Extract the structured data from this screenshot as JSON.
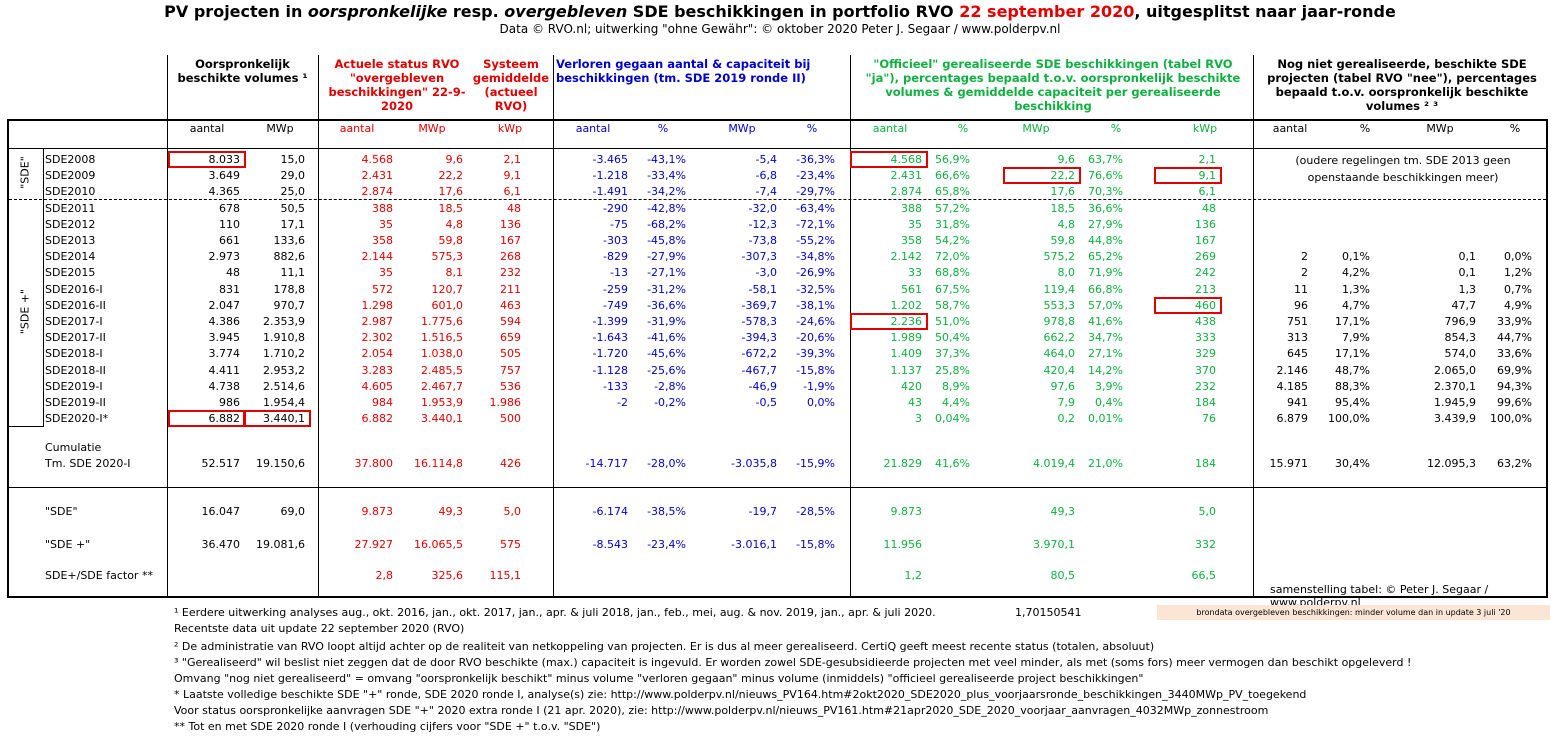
{
  "title": {
    "part1": "PV projecten in ",
    "part2": "oorspronkelijke",
    "part3": " resp. ",
    "part4": "overgebleven",
    "part5": " SDE beschikkingen in portfolio RVO ",
    "part6": "22 september 2020",
    "part7": ", uitgesplitst naar jaar-ronde"
  },
  "subtitle": "Data © RVO.nl; uitwerking \"ohne Gewähr\": © oktober 2020 Peter J. Segaar / www.polderpv.nl",
  "headers": {
    "orig": "Oorspronkelijk beschikte volumes ¹",
    "actueel": "Actuele status RVO \"overgebleven beschikkingen\" 22-9-2020",
    "systeem": "Systeem gemiddelde (actueel RVO)",
    "verloren": "Verloren gegaan aantal & capaciteit bij beschikkingen (tm. SDE 2019 ronde II)",
    "officieel": "\"Officieel\" gerealiseerde SDE beschikkingen (tabel RVO \"ja\"), percentages bepaald t.o.v. oorspronkelijk beschikte volumes & gemiddelde capaciteit per gerealiseerde beschikking",
    "nognietgereal": "Nog niet gerealiseerde, beschikte SDE projecten (tabel RVO \"nee\"), percentages bepaald t.o.v. oorspronkelijk beschikte volumes ² ³"
  },
  "subheaders": [
    "aantal",
    "MWp",
    "aantal",
    "MWp",
    "kWp",
    "aantal",
    "%",
    "MWp",
    "%",
    "aantal",
    "%",
    "MWp",
    "%",
    "kWp",
    "aantal",
    "%",
    "MWp",
    "%"
  ],
  "group_labels": {
    "sde": "\"SDE\"",
    "sdeplus": "\"SDE +\""
  },
  "rows": [
    {
      "label": "SDE2008",
      "v": [
        "8.033",
        "15,0",
        "4.568",
        "9,6",
        "2,1",
        "-3.465",
        "-43,1%",
        "-5,4",
        "-36,3%",
        "4.568",
        "56,9%",
        "9,6",
        "63,7%",
        "2,1",
        "",
        "",
        "",
        ""
      ]
    },
    {
      "label": "SDE2009",
      "v": [
        "3.649",
        "29,0",
        "2.431",
        "22,2",
        "9,1",
        "-1.218",
        "-33,4%",
        "-6,8",
        "-23,4%",
        "2.431",
        "66,6%",
        "22,2",
        "76,6%",
        "9,1",
        "",
        "",
        "",
        ""
      ]
    },
    {
      "label": "SDE2010",
      "v": [
        "4.365",
        "25,0",
        "2.874",
        "17,6",
        "6,1",
        "-1.491",
        "-34,2%",
        "-7,4",
        "-29,7%",
        "2.874",
        "65,8%",
        "17,6",
        "70,3%",
        "6,1",
        "",
        "",
        "",
        ""
      ]
    },
    {
      "label": "SDE2011",
      "v": [
        "678",
        "50,5",
        "388",
        "18,5",
        "48",
        "-290",
        "-42,8%",
        "-32,0",
        "-63,4%",
        "388",
        "57,2%",
        "18,5",
        "36,6%",
        "48",
        "",
        "",
        "",
        ""
      ]
    },
    {
      "label": "SDE2012",
      "v": [
        "110",
        "17,1",
        "35",
        "4,8",
        "136",
        "-75",
        "-68,2%",
        "-12,3",
        "-72,1%",
        "35",
        "31,8%",
        "4,8",
        "27,9%",
        "136",
        "",
        "",
        "",
        ""
      ]
    },
    {
      "label": "SDE2013",
      "v": [
        "661",
        "133,6",
        "358",
        "59,8",
        "167",
        "-303",
        "-45,8%",
        "-73,8",
        "-55,2%",
        "358",
        "54,2%",
        "59,8",
        "44,8%",
        "167",
        "",
        "",
        "",
        ""
      ]
    },
    {
      "label": "SDE2014",
      "v": [
        "2.973",
        "882,6",
        "2.144",
        "575,3",
        "268",
        "-829",
        "-27,9%",
        "-307,3",
        "-34,8%",
        "2.142",
        "72,0%",
        "575,2",
        "65,2%",
        "269",
        "2",
        "0,1%",
        "0,1",
        "0,0%"
      ]
    },
    {
      "label": "SDE2015",
      "v": [
        "48",
        "11,1",
        "35",
        "8,1",
        "232",
        "-13",
        "-27,1%",
        "-3,0",
        "-26,9%",
        "33",
        "68,8%",
        "8,0",
        "71,9%",
        "242",
        "2",
        "4,2%",
        "0,1",
        "1,2%"
      ]
    },
    {
      "label": "SDE2016-I",
      "v": [
        "831",
        "178,8",
        "572",
        "120,7",
        "211",
        "-259",
        "-31,2%",
        "-58,1",
        "-32,5%",
        "561",
        "67,5%",
        "119,4",
        "66,8%",
        "213",
        "11",
        "1,3%",
        "1,3",
        "0,7%"
      ]
    },
    {
      "label": "SDE2016-II",
      "v": [
        "2.047",
        "970,7",
        "1.298",
        "601,0",
        "463",
        "-749",
        "-36,6%",
        "-369,7",
        "-38,1%",
        "1.202",
        "58,7%",
        "553,3",
        "57,0%",
        "460",
        "96",
        "4,7%",
        "47,7",
        "4,9%"
      ]
    },
    {
      "label": "SDE2017-I",
      "v": [
        "4.386",
        "2.353,9",
        "2.987",
        "1.775,6",
        "594",
        "-1.399",
        "-31,9%",
        "-578,3",
        "-24,6%",
        "2.236",
        "51,0%",
        "978,8",
        "41,6%",
        "438",
        "751",
        "17,1%",
        "796,9",
        "33,9%"
      ]
    },
    {
      "label": "SDE2017-II",
      "v": [
        "3.945",
        "1.910,8",
        "2.302",
        "1.516,5",
        "659",
        "-1.643",
        "-41,6%",
        "-394,3",
        "-20,6%",
        "1.989",
        "50,4%",
        "662,2",
        "34,7%",
        "333",
        "313",
        "7,9%",
        "854,3",
        "44,7%"
      ]
    },
    {
      "label": "SDE2018-I",
      "v": [
        "3.774",
        "1.710,2",
        "2.054",
        "1.038,0",
        "505",
        "-1.720",
        "-45,6%",
        "-672,2",
        "-39,3%",
        "1.409",
        "37,3%",
        "464,0",
        "27,1%",
        "329",
        "645",
        "17,1%",
        "574,0",
        "33,6%"
      ]
    },
    {
      "label": "SDE2018-II",
      "v": [
        "4.411",
        "2.953,2",
        "3.283",
        "2.485,5",
        "757",
        "-1.128",
        "-25,6%",
        "-467,7",
        "-15,8%",
        "1.137",
        "25,8%",
        "420,4",
        "14,2%",
        "370",
        "2.146",
        "48,7%",
        "2.065,0",
        "69,9%"
      ]
    },
    {
      "label": "SDE2019-I",
      "v": [
        "4.738",
        "2.514,6",
        "4.605",
        "2.467,7",
        "536",
        "-133",
        "-2,8%",
        "-46,9",
        "-1,9%",
        "420",
        "8,9%",
        "97,6",
        "3,9%",
        "232",
        "4.185",
        "88,3%",
        "2.370,1",
        "94,3%"
      ]
    },
    {
      "label": "SDE2019-II",
      "v": [
        "986",
        "1.954,4",
        "984",
        "1.953,9",
        "1.986",
        "-2",
        "-0,2%",
        "-0,5",
        "0,0%",
        "43",
        "4,4%",
        "7,9",
        "0,4%",
        "184",
        "941",
        "95,4%",
        "1.945,9",
        "99,6%"
      ]
    },
    {
      "label": "SDE2020-I*",
      "v": [
        "6.882",
        "3.440,1",
        "6.882",
        "3.440,1",
        "500",
        "",
        "",
        "",
        "",
        "3",
        "0,04%",
        "0,2",
        "0,01%",
        "76",
        "6.879",
        "100,0%",
        "3.439,9",
        "100,0%"
      ]
    }
  ],
  "oudere_note": "(oudere regelingen tm. SDE 2013 geen openstaande beschikkingen meer)",
  "cumulatie": {
    "label1": "Cumulatie",
    "label2": "Tm. SDE 2020-I",
    "v": [
      "52.517",
      "19.150,6",
      "37.800",
      "16.114,8",
      "426",
      "-14.717",
      "-28,0%",
      "-3.035,8",
      "-15,9%",
      "21.829",
      "41,6%",
      "4.019,4",
      "21,0%",
      "184",
      "15.971",
      "30,4%",
      "12.095,3",
      "63,2%"
    ]
  },
  "summary": [
    {
      "label": "\"SDE\"",
      "v": [
        "16.047",
        "69,0",
        "9.873",
        "49,3",
        "5,0",
        "-6.174",
        "-38,5%",
        "-19,7",
        "-28,5%",
        "9.873",
        "",
        "49,3",
        "",
        "5,0",
        "",
        "",
        "",
        ""
      ]
    },
    {
      "label": "\"SDE +\"",
      "v": [
        "36.470",
        "19.081,6",
        "27.927",
        "16.065,5",
        "575",
        "-8.543",
        "-23,4%",
        "-3.016,1",
        "-15,8%",
        "11.956",
        "",
        "3.970,1",
        "",
        "332",
        "",
        "",
        "",
        ""
      ]
    },
    {
      "label": "SDE+/SDE factor **",
      "v": [
        "",
        "",
        "2,8",
        "325,6",
        "115,1",
        "",
        "",
        "",
        "",
        "1,2",
        "",
        "80,5",
        "",
        "66,5",
        "",
        "",
        "",
        ""
      ]
    }
  ],
  "credit": "samenstelling tabel: © Peter J. Segaar / www.polderpv.nl",
  "brondata": "brondata overgebleven beschikkingen: minder volume dan in update 3 juli '20",
  "notes": [
    "¹ Eerdere uitwerking analyses aug., okt. 2016, jan., okt.  2017, jan., apr. & juli 2018, jan., feb., mei, aug. & nov. 2019, jan., apr. & juli 2020.",
    "1,70150541",
    "   Recentste data uit update 22 september 2020 (RVO)",
    "² De administratie van RVO loopt altijd achter op de realiteit van netkoppeling van projecten. Er is dus al meer gerealiseerd. CertiQ geeft meest recente status (totalen, absoluut)",
    "³ \"Gerealiseerd\" wil beslist niet zeggen dat de door RVO beschikte (max.) capaciteit is ingevuld. Er worden zowel SDE-gesubsidieerde projecten met veel minder, als met (soms fors) meer vermogen dan beschikt opgeleverd !",
    "Omvang \"nog niet gerealiseerd\" = omvang \"oorspronkelijk beschikt\" minus volume \"verloren gegaan\" minus volume (inmiddels) \"officieel gerealiseerde project beschikkingen\"",
    "* Laatste volledige beschikte SDE \"+\" ronde, SDE 2020 ronde I, analyse(s) zie: http://www.polderpv.nl/nieuws_PV164.htm#2okt2020_SDE2020_plus_voorjaarsronde_beschikkingen_3440MWp_PV_toegekend",
    "Voor status oorspronkelijke aanvragen SDE \"+\" 2020 extra ronde I (21 apr. 2020), zie: http://www.polderpv.nl/nieuws_PV161.htm#21apr2020_SDE_2020_voorjaar_aanvragen_4032MWp_zonnestroom",
    "** Tot en met SDE 2020 ronde I (verhouding cijfers voor \"SDE +\" t.o.v. \"SDE\")"
  ]
}
